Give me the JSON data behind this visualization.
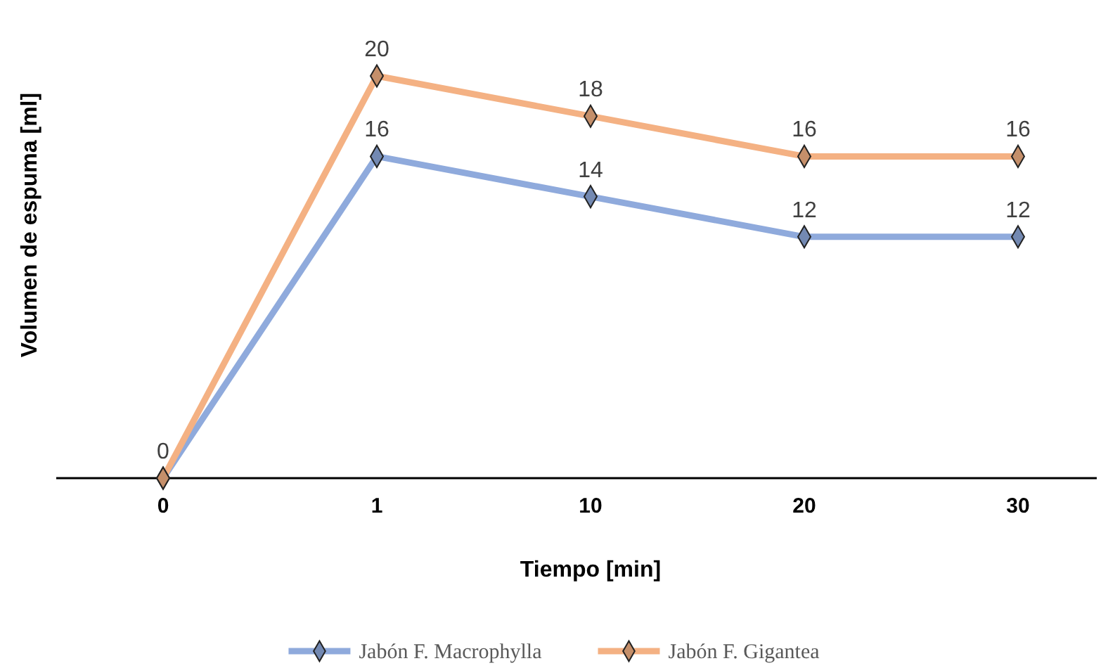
{
  "chart_data": {
    "type": "line",
    "xlabel": "Tiempo [min]",
    "ylabel": "Volumen de espuma [ml]",
    "categories": [
      "0",
      "1",
      "10",
      "20",
      "30"
    ],
    "series": [
      {
        "name": "Jabón F. Macrophylla",
        "color": "#8faadc",
        "values": [
          0,
          16,
          14,
          12,
          12
        ],
        "value_labels": [
          null,
          "16",
          "14",
          "12",
          "12"
        ]
      },
      {
        "name": "Jabón F. Gigantea",
        "color": "#f4b183",
        "values": [
          0,
          20,
          18,
          16,
          16
        ],
        "value_labels": [
          "0",
          "20",
          "18",
          "16",
          "16"
        ]
      }
    ],
    "tick_labels": "x",
    "marker": "diamond",
    "legend": "bottom"
  }
}
